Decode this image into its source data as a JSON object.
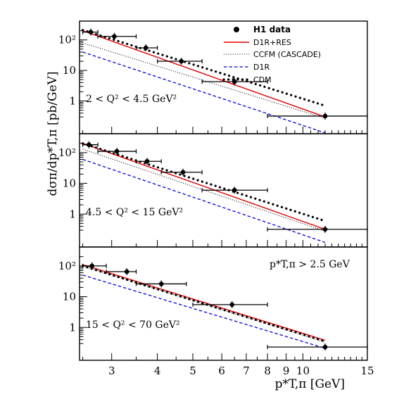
{
  "chart_data": {
    "type": "line",
    "x_scale": "log",
    "y_scale": "log",
    "xlim": [
      2.45,
      15
    ],
    "x_ticks": [
      3,
      4,
      5,
      6,
      7,
      8,
      9,
      10,
      15
    ],
    "x_tick_labels": [
      "3",
      "4",
      "5",
      "6",
      "7",
      "8",
      "9",
      "10",
      "15"
    ],
    "y_ticks": [
      1,
      10,
      100
    ],
    "y_tick_labels": [
      "1",
      "10",
      "10²"
    ],
    "ylabel": "dσπ/dp*T,π [pb/GeV]",
    "xlabel": "p*T,π [GeV]",
    "legend": [
      {
        "label": "H1 data",
        "style": "marker",
        "color": "#000000"
      },
      {
        "label": "D1R+RES",
        "style": "solid",
        "color": "#e00000"
      },
      {
        "label": "CCFM (CASCADE)",
        "style": "dotted-thin",
        "color": "#000000"
      },
      {
        "label": "D1R",
        "style": "dashed",
        "color": "#0000dd"
      },
      {
        "label": "CDM",
        "style": "dotted-thick",
        "color": "#000000"
      }
    ],
    "annotation": "p*T,π > 2.5 GeV",
    "panels": [
      {
        "label": "2 < Q² < 4.5 GeV²",
        "ylim": [
          0.22,
          270
        ],
        "data": [
          {
            "x": 2.63,
            "y": 180,
            "xerr": [
              2.5,
              2.75
            ]
          },
          {
            "x": 3.05,
            "y": 130,
            "xerr": [
              2.75,
              3.5
            ]
          },
          {
            "x": 3.72,
            "y": 55,
            "xerr": [
              3.5,
              4.0
            ]
          },
          {
            "x": 4.65,
            "y": 20,
            "xerr": [
              4.0,
              5.3
            ]
          },
          {
            "x": 6.5,
            "y": 4.3,
            "xerr": [
              5.3,
              8.0
            ]
          },
          {
            "x": 11.5,
            "y": 0.32,
            "xerr": [
              8.0,
              15.0
            ]
          }
        ],
        "series": [
          {
            "name": "D1R+RES",
            "x": [
              2.5,
              11.5
            ],
            "y": [
              200,
              0.3
            ]
          },
          {
            "name": "CCFM (CASCADE)",
            "x": [
              2.5,
              11.5
            ],
            "y": [
              80,
              0.27
            ]
          },
          {
            "name": "D1R",
            "x": [
              2.5,
              11.5
            ],
            "y": [
              40,
              0.09
            ]
          },
          {
            "name": "CDM",
            "x": [
              2.5,
              11.5
            ],
            "y": [
              210,
              0.7
            ]
          }
        ]
      },
      {
        "label": "4.5 < Q² < 15 GeV²",
        "ylim": [
          0.22,
          270
        ],
        "data": [
          {
            "x": 2.6,
            "y": 180,
            "xerr": [
              2.5,
              2.75
            ]
          },
          {
            "x": 3.1,
            "y": 110,
            "xerr": [
              2.75,
              3.5
            ]
          },
          {
            "x": 3.75,
            "y": 52,
            "xerr": [
              3.5,
              4.1
            ]
          },
          {
            "x": 4.7,
            "y": 23,
            "xerr": [
              4.1,
              5.3
            ]
          },
          {
            "x": 6.5,
            "y": 6.0,
            "xerr": [
              5.3,
              8.0
            ]
          },
          {
            "x": 11.5,
            "y": 0.32,
            "xerr": [
              8.0,
              15.0
            ]
          }
        ],
        "series": [
          {
            "name": "D1R+RES",
            "x": [
              2.5,
              11.5
            ],
            "y": [
              200,
              0.32
            ]
          },
          {
            "name": "CCFM (CASCADE)",
            "x": [
              2.5,
              11.5
            ],
            "y": [
              130,
              0.28
            ]
          },
          {
            "name": "D1R",
            "x": [
              2.5,
              11.5
            ],
            "y": [
              60,
              0.12
            ]
          },
          {
            "name": "CDM",
            "x": [
              2.5,
              11.5
            ],
            "y": [
              200,
              0.6
            ]
          }
        ]
      },
      {
        "label": "15 < Q² < 70 GeV²",
        "ylim": [
          0.22,
          270
        ],
        "data": [
          {
            "x": 2.65,
            "y": 100,
            "xerr": [
              2.5,
              2.9
            ]
          },
          {
            "x": 3.3,
            "y": 65,
            "xerr": [
              2.9,
              3.5
            ]
          },
          {
            "x": 4.1,
            "y": 26,
            "xerr": [
              3.5,
              4.8
            ]
          },
          {
            "x": 6.4,
            "y": 5.5,
            "xerr": [
              5.0,
              8.0
            ]
          },
          {
            "x": 11.5,
            "y": 0.23,
            "xerr": [
              8.0,
              15.0
            ]
          }
        ],
        "series": [
          {
            "name": "D1R+RES",
            "x": [
              2.5,
              11.5
            ],
            "y": [
              110,
              0.38
            ]
          },
          {
            "name": "CCFM (CASCADE)",
            "x": [
              2.5,
              11.5
            ],
            "y": [
              100,
              0.33
            ]
          },
          {
            "name": "D1R",
            "x": [
              2.5,
              11.5
            ],
            "y": [
              50,
              0.21
            ]
          },
          {
            "name": "CDM",
            "x": [
              2.5,
              11.5
            ],
            "y": [
              100,
              0.35
            ]
          }
        ]
      }
    ]
  }
}
